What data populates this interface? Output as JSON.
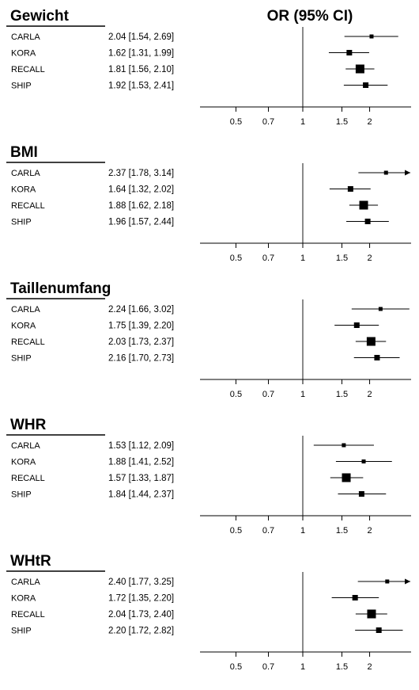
{
  "page": {
    "header_right": "OR (95% CI)"
  },
  "chart_data": [
    {
      "type": "forest",
      "title": "Gewicht",
      "x_scale": "log",
      "xlim": [
        0.4,
        3.05
      ],
      "xticks": [
        "0.5",
        "0.7",
        "1",
        "1.5",
        "2"
      ],
      "xtick_values": [
        0.5,
        0.7,
        1,
        1.5,
        2
      ],
      "reference_line": 1,
      "rows": [
        {
          "study": "CARLA",
          "ci_text": "2.04 [1.54, 2.69]",
          "or": 2.04,
          "lo": 1.54,
          "hi": 2.69,
          "weight": "small"
        },
        {
          "study": "KORA",
          "ci_text": "1.62 [1.31, 1.99]",
          "or": 1.62,
          "lo": 1.31,
          "hi": 1.99,
          "weight": "medium"
        },
        {
          "study": "RECALL",
          "ci_text": "1.81 [1.56, 2.10]",
          "or": 1.81,
          "lo": 1.56,
          "hi": 2.1,
          "weight": "large"
        },
        {
          "study": "SHIP",
          "ci_text": "1.92 [1.53, 2.41]",
          "or": 1.92,
          "lo": 1.53,
          "hi": 2.41,
          "weight": "medium"
        }
      ]
    },
    {
      "type": "forest",
      "title": "BMI",
      "x_scale": "log",
      "xlim": [
        0.4,
        3.05
      ],
      "xticks": [
        "0.5",
        "0.7",
        "1",
        "1.5",
        "2"
      ],
      "xtick_values": [
        0.5,
        0.7,
        1,
        1.5,
        2
      ],
      "reference_line": 1,
      "rows": [
        {
          "study": "CARLA",
          "ci_text": "2.37 [1.78, 3.14]",
          "or": 2.37,
          "lo": 1.78,
          "hi": 3.14,
          "weight": "small"
        },
        {
          "study": "KORA",
          "ci_text": "1.64 [1.32, 2.02]",
          "or": 1.64,
          "lo": 1.32,
          "hi": 2.02,
          "weight": "medium"
        },
        {
          "study": "RECALL",
          "ci_text": "1.88 [1.62, 2.18]",
          "or": 1.88,
          "lo": 1.62,
          "hi": 2.18,
          "weight": "large"
        },
        {
          "study": "SHIP",
          "ci_text": "1.96 [1.57, 2.44]",
          "or": 1.96,
          "lo": 1.57,
          "hi": 2.44,
          "weight": "medium"
        }
      ]
    },
    {
      "type": "forest",
      "title": "Taillenumfang",
      "x_scale": "log",
      "xlim": [
        0.4,
        3.05
      ],
      "xticks": [
        "0.5",
        "0.7",
        "1",
        "1.5",
        "2"
      ],
      "xtick_values": [
        0.5,
        0.7,
        1,
        1.5,
        2
      ],
      "reference_line": 1,
      "rows": [
        {
          "study": "CARLA",
          "ci_text": "2.24 [1.66, 3.02]",
          "or": 2.24,
          "lo": 1.66,
          "hi": 3.02,
          "weight": "small"
        },
        {
          "study": "KORA",
          "ci_text": "1.75 [1.39, 2.20]",
          "or": 1.75,
          "lo": 1.39,
          "hi": 2.2,
          "weight": "medium"
        },
        {
          "study": "RECALL",
          "ci_text": "2.03 [1.73, 2.37]",
          "or": 2.03,
          "lo": 1.73,
          "hi": 2.37,
          "weight": "large"
        },
        {
          "study": "SHIP",
          "ci_text": "2.16 [1.70, 2.73]",
          "or": 2.16,
          "lo": 1.7,
          "hi": 2.73,
          "weight": "medium"
        }
      ]
    },
    {
      "type": "forest",
      "title": "WHR",
      "x_scale": "log",
      "xlim": [
        0.4,
        3.05
      ],
      "xticks": [
        "0.5",
        "0.7",
        "1",
        "1.5",
        "2"
      ],
      "xtick_values": [
        0.5,
        0.7,
        1,
        1.5,
        2
      ],
      "reference_line": 1,
      "rows": [
        {
          "study": "CARLA",
          "ci_text": "1.53 [1.12, 2.09]",
          "or": 1.53,
          "lo": 1.12,
          "hi": 2.09,
          "weight": "small"
        },
        {
          "study": "KORA",
          "ci_text": "1.88 [1.41, 2.52]",
          "or": 1.88,
          "lo": 1.41,
          "hi": 2.52,
          "weight": "small"
        },
        {
          "study": "RECALL",
          "ci_text": "1.57 [1.33, 1.87]",
          "or": 1.57,
          "lo": 1.33,
          "hi": 1.87,
          "weight": "large"
        },
        {
          "study": "SHIP",
          "ci_text": "1.84 [1.44, 2.37]",
          "or": 1.84,
          "lo": 1.44,
          "hi": 2.37,
          "weight": "medium"
        }
      ]
    },
    {
      "type": "forest",
      "title": "WHtR",
      "x_scale": "log",
      "xlim": [
        0.4,
        3.05
      ],
      "xticks": [
        "0.5",
        "0.7",
        "1",
        "1.5",
        "2"
      ],
      "xtick_values": [
        0.5,
        0.7,
        1,
        1.5,
        2
      ],
      "reference_line": 1,
      "rows": [
        {
          "study": "CARLA",
          "ci_text": "2.40 [1.77, 3.25]",
          "or": 2.4,
          "lo": 1.77,
          "hi": 3.25,
          "weight": "small"
        },
        {
          "study": "KORA",
          "ci_text": "1.72 [1.35, 2.20]",
          "or": 1.72,
          "lo": 1.35,
          "hi": 2.2,
          "weight": "medium"
        },
        {
          "study": "RECALL",
          "ci_text": "2.04 [1.73, 2.40]",
          "or": 2.04,
          "lo": 1.73,
          "hi": 2.4,
          "weight": "large"
        },
        {
          "study": "SHIP",
          "ci_text": "2.20 [1.72, 2.82]",
          "or": 2.2,
          "lo": 1.72,
          "hi": 2.82,
          "weight": "medium"
        }
      ]
    }
  ]
}
